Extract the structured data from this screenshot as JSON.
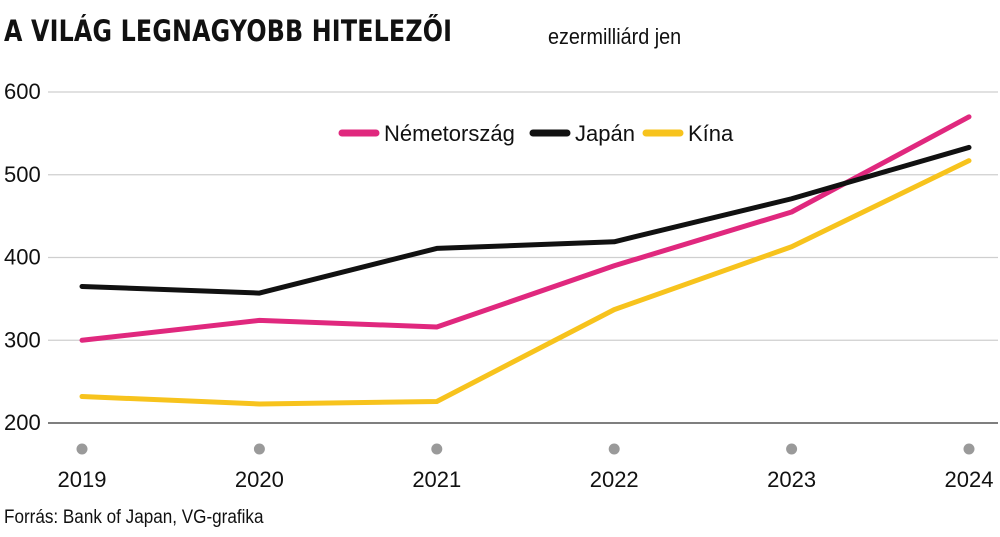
{
  "header": {
    "title": "A VILÁG LEGNAGYOBB HITELEZŐI",
    "unit": "ezermilliárd jen"
  },
  "footer": {
    "source": "Forrás: Bank of Japan, VG-grafika"
  },
  "chart_data": {
    "type": "line",
    "title": "A VILÁG LEGNAGYOBB HITELEZŐI",
    "subtitle": "ezermilliárd jen",
    "x": [
      "2019",
      "2020",
      "2021",
      "2022",
      "2023",
      "2024"
    ],
    "ylim": [
      200,
      600
    ],
    "yticks": [
      200,
      300,
      400,
      500,
      600
    ],
    "grid": true,
    "legend_position": "top-center",
    "series": [
      {
        "name": "Németország",
        "color": "#e0287e",
        "values": [
          300,
          324,
          316,
          390,
          455,
          570
        ]
      },
      {
        "name": "Japán",
        "color": "#111111",
        "values": [
          365,
          357,
          411,
          419,
          471,
          533
        ]
      },
      {
        "name": "Kína",
        "color": "#f7c31d",
        "values": [
          232,
          223,
          226,
          337,
          413,
          517
        ]
      }
    ],
    "tick_marker_color": "#9a9a9a"
  }
}
